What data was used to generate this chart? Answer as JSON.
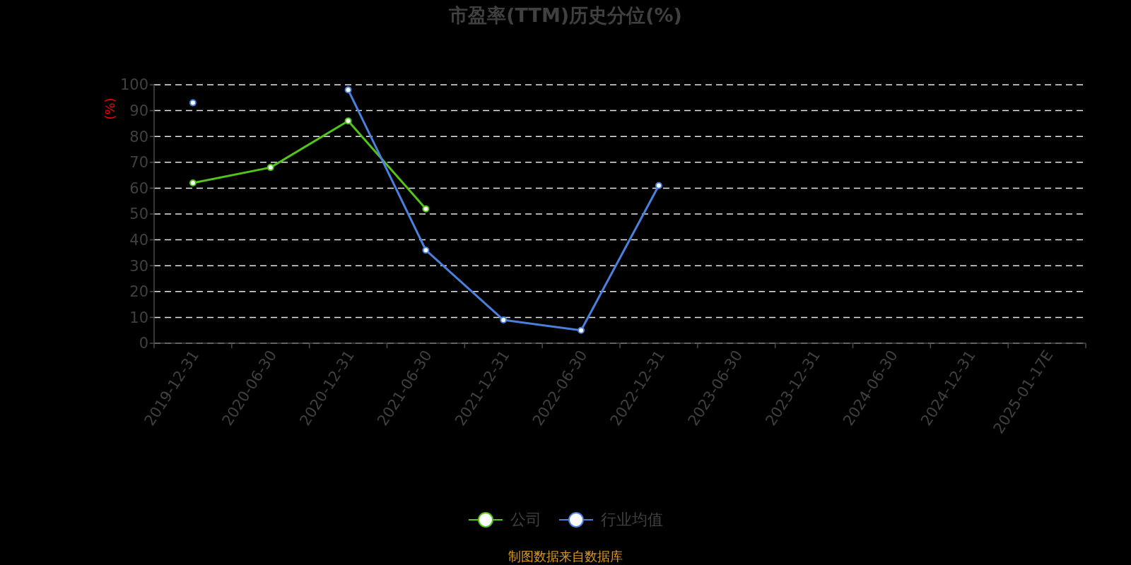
{
  "chart_data": {
    "type": "line",
    "title": "市盈率(TTM)历史分位(%)",
    "ylabel": "(%)",
    "categories": [
      "2019-12-31",
      "2020-06-30",
      "2020-12-31",
      "2021-06-30",
      "2021-12-31",
      "2022-06-30",
      "2022-12-31",
      "2023-06-30",
      "2023-12-31",
      "2024-06-30",
      "2024-12-31",
      "2025-01-17E"
    ],
    "series": [
      {
        "name": "公司",
        "color": "#52c41a",
        "values": [
          62,
          68,
          86,
          52,
          null,
          null,
          null,
          null,
          null,
          null,
          null,
          null
        ]
      },
      {
        "name": "行业均值",
        "color": "#4a80dc",
        "values": [
          93,
          null,
          98,
          36,
          9,
          5,
          61,
          null,
          null,
          null,
          null,
          null
        ]
      }
    ],
    "ylim": [
      0,
      100
    ],
    "yticks": [
      0,
      10,
      20,
      30,
      40,
      50,
      60,
      70,
      80,
      90,
      100
    ],
    "grid": "y",
    "legend": "bottom",
    "marker": "circle",
    "line_style": "solid",
    "annotations": [
      "制图数据来自数据库"
    ]
  }
}
